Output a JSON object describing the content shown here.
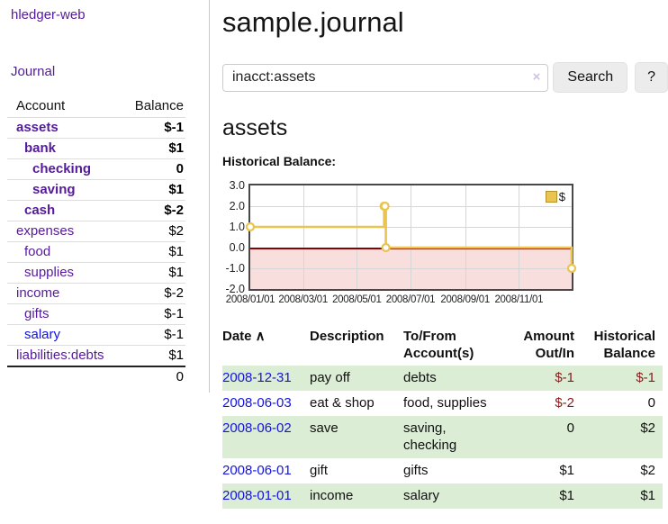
{
  "colors": {
    "link_purple": "#551a9b",
    "link_blue": "#1414dd",
    "negative_strong": "#8b1a1a",
    "negative_muted": "#bf7f7f",
    "row_highlight_green": "#dcedd5",
    "chart_line_gold": "#e9c44f",
    "chart_negative_bg": "#f9dede",
    "chart_zero_line": "#8b0000",
    "button_gray": "#ececec"
  },
  "sidebar": {
    "brand": "hledger-web",
    "journal_link": "Journal",
    "accounts_table": {
      "account_header": "Account",
      "balance_header": "Balance",
      "rows": [
        {
          "name": "assets",
          "balance": "$-1",
          "depth": 1,
          "bold": true,
          "negative": "strong"
        },
        {
          "name": "bank",
          "balance": "$1",
          "depth": 2,
          "bold": true,
          "negative": null
        },
        {
          "name": "checking",
          "balance": "0",
          "depth": 3,
          "bold": true,
          "negative": null
        },
        {
          "name": "saving",
          "balance": "$1",
          "depth": 3,
          "bold": true,
          "negative": null
        },
        {
          "name": "cash",
          "balance": "$-2",
          "depth": 2,
          "bold": true,
          "negative": "strong"
        },
        {
          "name": "expenses",
          "balance": "$2",
          "depth": 1,
          "bold": false,
          "negative": null
        },
        {
          "name": "food",
          "balance": "$1",
          "depth": 2,
          "bold": false,
          "negative": null
        },
        {
          "name": "supplies",
          "balance": "$1",
          "depth": 2,
          "bold": false,
          "negative": null
        },
        {
          "name": "income",
          "balance": "$-2",
          "depth": 1,
          "bold": false,
          "negative": "muted"
        },
        {
          "name": "gifts",
          "balance": "$-1",
          "depth": 2,
          "bold": false,
          "negative": "muted"
        },
        {
          "name": "salary",
          "balance": "$-1",
          "depth": 2,
          "bold": false,
          "negative": "muted",
          "unvisited": true
        },
        {
          "name": "liabilities:debts",
          "balance": "$1",
          "depth": 1,
          "bold": false,
          "negative": null
        }
      ],
      "total": "0"
    }
  },
  "main": {
    "title": "sample.journal",
    "search": {
      "query": "inacct:assets",
      "clear_icon": "×",
      "button_label": "Search",
      "help_label": "?"
    },
    "account_heading": "assets",
    "chart_title": "Historical Balance:",
    "register_table": {
      "headers": [
        {
          "label": "Date",
          "sort_icon": "∧",
          "align": "left"
        },
        {
          "label": "Description",
          "align": "left"
        },
        {
          "label": "To/From Account(s)",
          "align": "left"
        },
        {
          "label": "Amount Out/In",
          "align": "right"
        },
        {
          "label": "Historical Balance",
          "align": "right"
        }
      ],
      "rows": [
        {
          "date": "2008-12-31",
          "description": "pay off",
          "accounts": "debts",
          "amount": "$-1",
          "amount_negative": true,
          "balance": "$-1",
          "balance_negative": true,
          "highlight": true
        },
        {
          "date": "2008-06-03",
          "description": "eat & shop",
          "accounts": "food, supplies",
          "amount": "$-2",
          "amount_negative": true,
          "balance": "0",
          "balance_negative": false,
          "highlight": false
        },
        {
          "date": "2008-06-02",
          "description": "save",
          "accounts": "saving, checking",
          "amount": "0",
          "amount_negative": false,
          "balance": "$2",
          "balance_negative": false,
          "highlight": true
        },
        {
          "date": "2008-06-01",
          "description": "gift",
          "accounts": "gifts",
          "amount": "$1",
          "amount_negative": false,
          "balance": "$2",
          "balance_negative": false,
          "highlight": false
        },
        {
          "date": "2008-01-01",
          "description": "income",
          "accounts": "salary",
          "amount": "$1",
          "amount_negative": false,
          "balance": "$1",
          "balance_negative": false,
          "highlight": true
        }
      ]
    }
  },
  "chart_data": {
    "type": "line",
    "step": true,
    "title": "Historical Balance",
    "legend": {
      "label": "$",
      "position": "top-right"
    },
    "ylim": [
      -2,
      3
    ],
    "y_ticks": [
      "3.0",
      "2.0",
      "1.0",
      "0.0",
      "-1.0",
      "-2.0"
    ],
    "x_domain": [
      "2008-01-01",
      "2008-12-31"
    ],
    "x_ticks": [
      "2008/01/01",
      "2008/03/01",
      "2008/05/01",
      "2008/07/01",
      "2008/09/01",
      "2008/11/01"
    ],
    "series": [
      {
        "name": "$",
        "color": "#e9c44f",
        "points": [
          {
            "date": "2008-01-01",
            "value": 1
          },
          {
            "date": "2008-06-01",
            "value": 2
          },
          {
            "date": "2008-06-02",
            "value": 2
          },
          {
            "date": "2008-06-03",
            "value": 0
          },
          {
            "date": "2008-12-31",
            "value": -1
          }
        ]
      }
    ],
    "negative_region": true,
    "grid": true
  }
}
